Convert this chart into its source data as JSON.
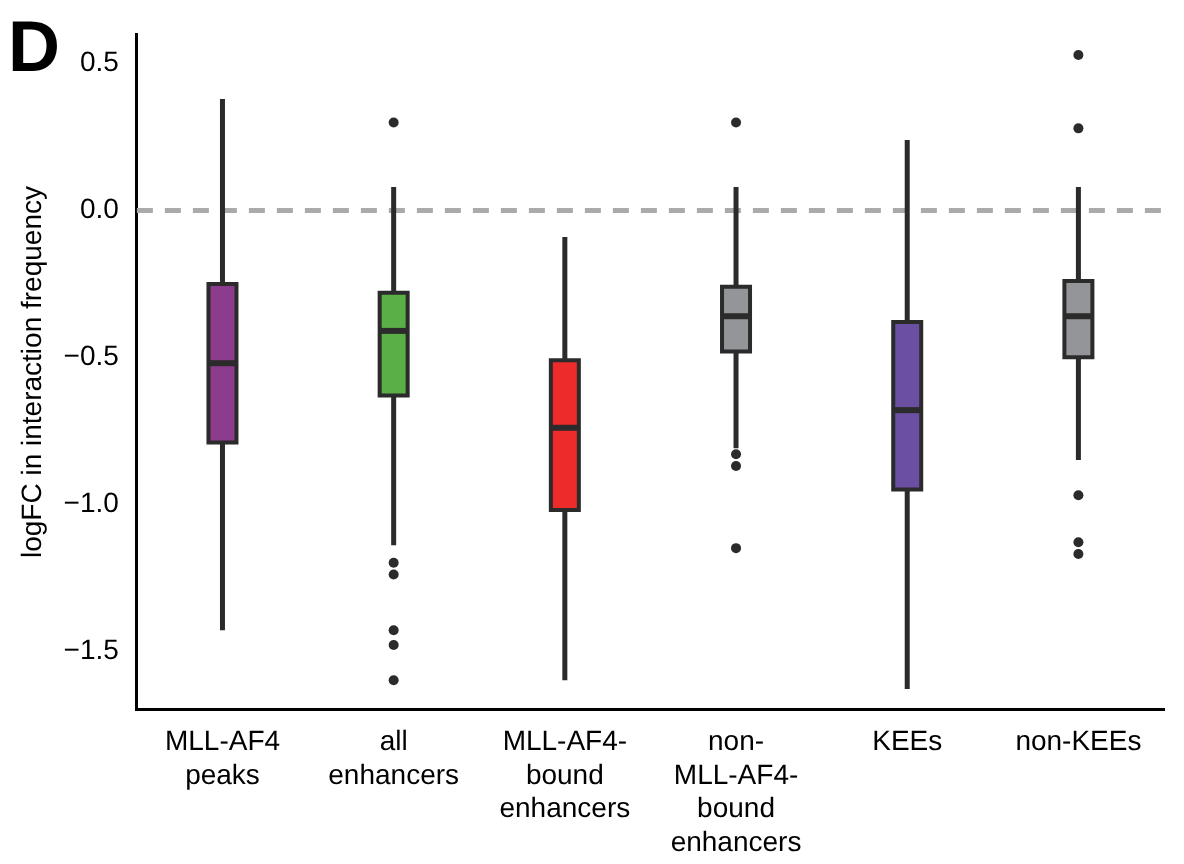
{
  "chart_data": {
    "type": "box",
    "title": "D",
    "ylabel": "logFC in interaction frequency",
    "categories": [
      "MLL-AF4\npeaks",
      "all\nenhancers",
      "MLL-AF4-\nbound\nenhancers",
      "non-\nMLL-AF4-\nbound\nenhancers",
      "KEEs",
      "non-KEEs"
    ],
    "colors": [
      "#8c3c8c",
      "#5aaf46",
      "#ee2b2b",
      "#939598",
      "#6a4fa3",
      "#939598"
    ],
    "boxes": [
      {
        "low": -1.43,
        "q1": -0.79,
        "median": -0.52,
        "q3": -0.25,
        "high": 0.38
      },
      {
        "low": -1.14,
        "q1": -0.63,
        "median": -0.41,
        "q3": -0.28,
        "high": 0.08,
        "outliers": [
          0.3,
          -1.2,
          -1.24,
          -1.43,
          -1.48,
          -1.6
        ]
      },
      {
        "low": -1.6,
        "q1": -1.02,
        "median": -0.74,
        "q3": -0.51,
        "high": -0.09
      },
      {
        "low": -0.81,
        "q1": -0.48,
        "median": -0.36,
        "q3": -0.26,
        "high": 0.08,
        "outliers": [
          0.3,
          -0.83,
          -0.87,
          -1.15
        ]
      },
      {
        "low": -1.63,
        "q1": -0.95,
        "median": -0.68,
        "q3": -0.38,
        "high": 0.24
      },
      {
        "low": -0.85,
        "q1": -0.5,
        "median": -0.36,
        "q3": -0.24,
        "high": 0.08,
        "outliers": [
          0.53,
          0.28,
          -0.97,
          -1.13,
          -1.17
        ]
      }
    ],
    "ylim": [
      -1.7,
      0.6
    ],
    "yticks": [
      {
        "value": 0.5,
        "label": "0.5"
      },
      {
        "value": 0,
        "label": "0.0"
      },
      {
        "value": -0.5,
        "label": "−0.5"
      },
      {
        "value": -1,
        "label": "−1.0"
      },
      {
        "value": -1.5,
        "label": "−1.5"
      }
    ],
    "ref_lines": [
      {
        "axis": "y",
        "value": 0,
        "label": null,
        "color": "#aaaaaa",
        "line_style": "dashed"
      }
    ],
    "legend": false
  }
}
